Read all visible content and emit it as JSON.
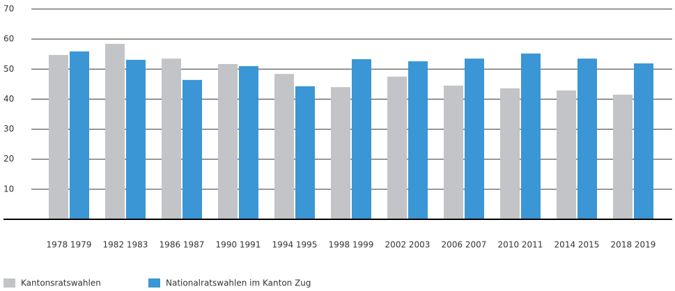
{
  "chart_data": {
    "type": "bar",
    "categories": [
      "1978 1979",
      "1982 1983",
      "1986 1987",
      "1990 1991",
      "1994 1995",
      "1998 1999",
      "2002 2003",
      "2006 2007",
      "2010 2011",
      "2014 2015",
      "2018 2019"
    ],
    "series": [
      {
        "name": "Kantonsratswahlen",
        "color": "#c2c4c8",
        "values": [
          54.7,
          58.4,
          53.5,
          51.7,
          48.4,
          44.0,
          47.5,
          44.5,
          43.6,
          42.9,
          41.5
        ]
      },
      {
        "name": "Nationalratswahlen im Kanton Zug",
        "color": "#3a96d5",
        "values": [
          55.9,
          53.1,
          46.4,
          51.0,
          44.3,
          53.3,
          52.6,
          53.5,
          55.2,
          53.5,
          51.9
        ]
      }
    ],
    "ylim": [
      0,
      70
    ],
    "yticks": [
      10,
      20,
      30,
      40,
      50,
      60,
      70
    ],
    "grid": true,
    "legend": "bottom-left"
  }
}
